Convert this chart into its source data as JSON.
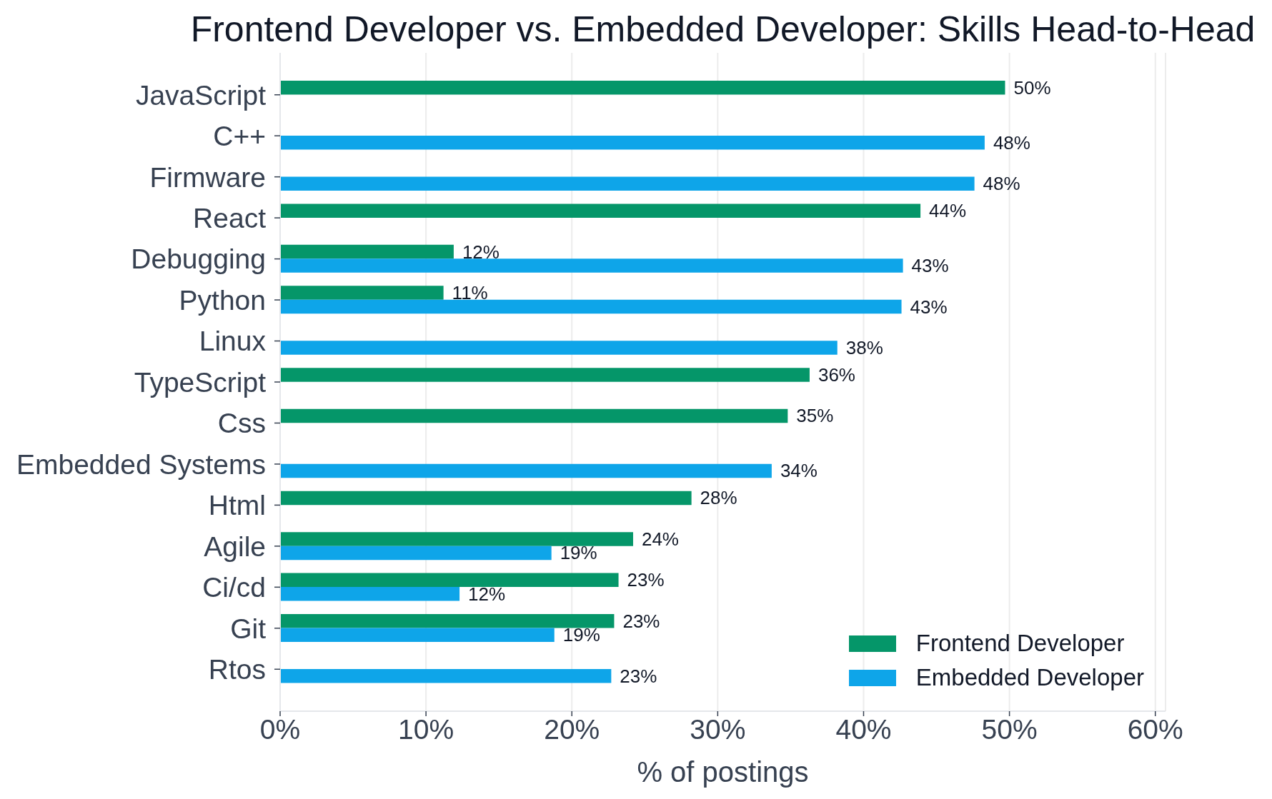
{
  "chart_data": {
    "type": "bar",
    "orientation": "horizontal",
    "title": "Frontend Developer vs. Embedded Developer: Skills Head-to-Head",
    "xlabel": "% of postings",
    "categories": [
      "JavaScript",
      "C++",
      "Firmware",
      "React",
      "Debugging",
      "Python",
      "Linux",
      "TypeScript",
      "Css",
      "Embedded Systems",
      "Html",
      "Agile",
      "Ci/cd",
      "Git",
      "Rtos"
    ],
    "series": [
      {
        "name": "Frontend Developer",
        "color": "#059669",
        "values": [
          49.7,
          null,
          null,
          43.9,
          11.9,
          11.2,
          null,
          36.3,
          34.8,
          null,
          28.2,
          24.2,
          23.2,
          22.9,
          null
        ],
        "value_labels": [
          "50%",
          null,
          null,
          "44%",
          "12%",
          "11%",
          null,
          "36%",
          "35%",
          null,
          "28%",
          "24%",
          "23%",
          "23%",
          null
        ]
      },
      {
        "name": "Embedded Developer",
        "color": "#0ea5e9",
        "values": [
          null,
          48.3,
          47.6,
          null,
          42.7,
          42.6,
          38.2,
          null,
          null,
          33.7,
          null,
          18.6,
          12.3,
          18.8,
          22.7
        ],
        "value_labels": [
          null,
          "48%",
          "48%",
          null,
          "43%",
          "43%",
          "38%",
          null,
          null,
          "34%",
          null,
          "19%",
          "12%",
          "19%",
          "23%"
        ]
      }
    ],
    "xlim": [
      0,
      60.7
    ],
    "xticks": [
      {
        "value": 0,
        "label": "0%"
      },
      {
        "value": 10,
        "label": "10%"
      },
      {
        "value": 20,
        "label": "20%"
      },
      {
        "value": 30,
        "label": "30%"
      },
      {
        "value": 40,
        "label": "40%"
      },
      {
        "value": 50,
        "label": "50%"
      },
      {
        "value": 60,
        "label": "60%"
      }
    ],
    "grid": "x",
    "legend": "bottom right"
  }
}
